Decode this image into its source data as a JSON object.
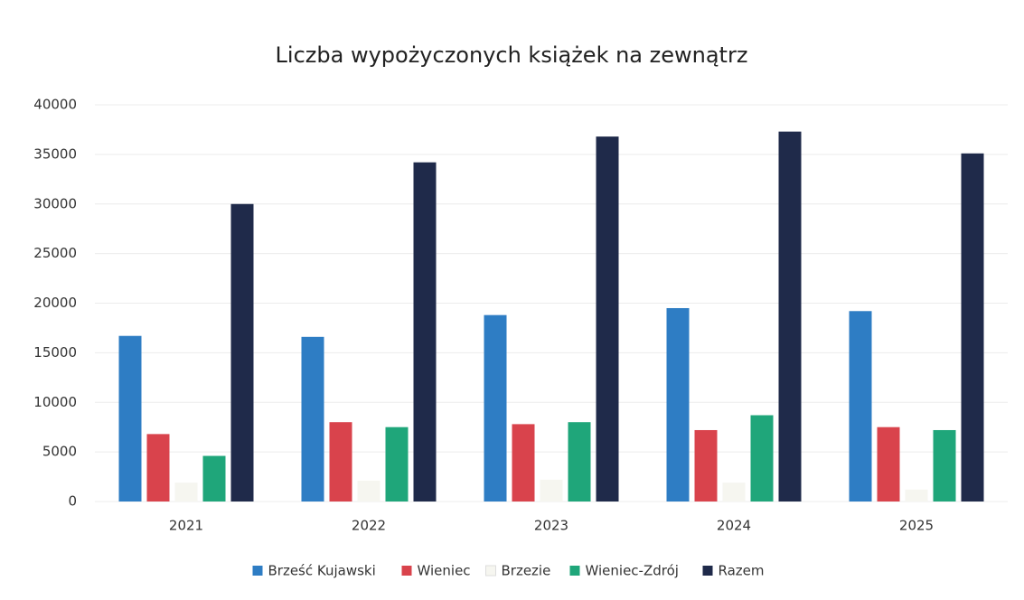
{
  "chart_data": {
    "type": "bar",
    "title": "Liczba wypożyczonych książek na zewnątrz",
    "categories": [
      "2021",
      "2022",
      "2023",
      "2024",
      "2025"
    ],
    "series": [
      {
        "name": "Brześć Kujawski",
        "color": "#2e7dc4",
        "values": [
          16700,
          16600,
          18800,
          19500,
          19200
        ]
      },
      {
        "name": "Wieniec",
        "color": "#d9434c",
        "values": [
          6800,
          8000,
          7800,
          7200,
          7500
        ]
      },
      {
        "name": "Brzezie",
        "color": "#f6f6f0",
        "values": [
          1900,
          2100,
          2200,
          1900,
          1200
        ]
      },
      {
        "name": "Wieniec-Zdrój",
        "color": "#1fa67a",
        "values": [
          4600,
          7500,
          8000,
          8700,
          7200
        ]
      },
      {
        "name": "Razem",
        "color": "#1f2a4a",
        "values": [
          30000,
          34200,
          36800,
          37300,
          35100
        ]
      }
    ],
    "ylim": [
      0,
      40000
    ],
    "yticks": [
      0,
      5000,
      10000,
      15000,
      20000,
      25000,
      30000,
      35000,
      40000
    ],
    "grid": true,
    "legend": "bottom"
  }
}
